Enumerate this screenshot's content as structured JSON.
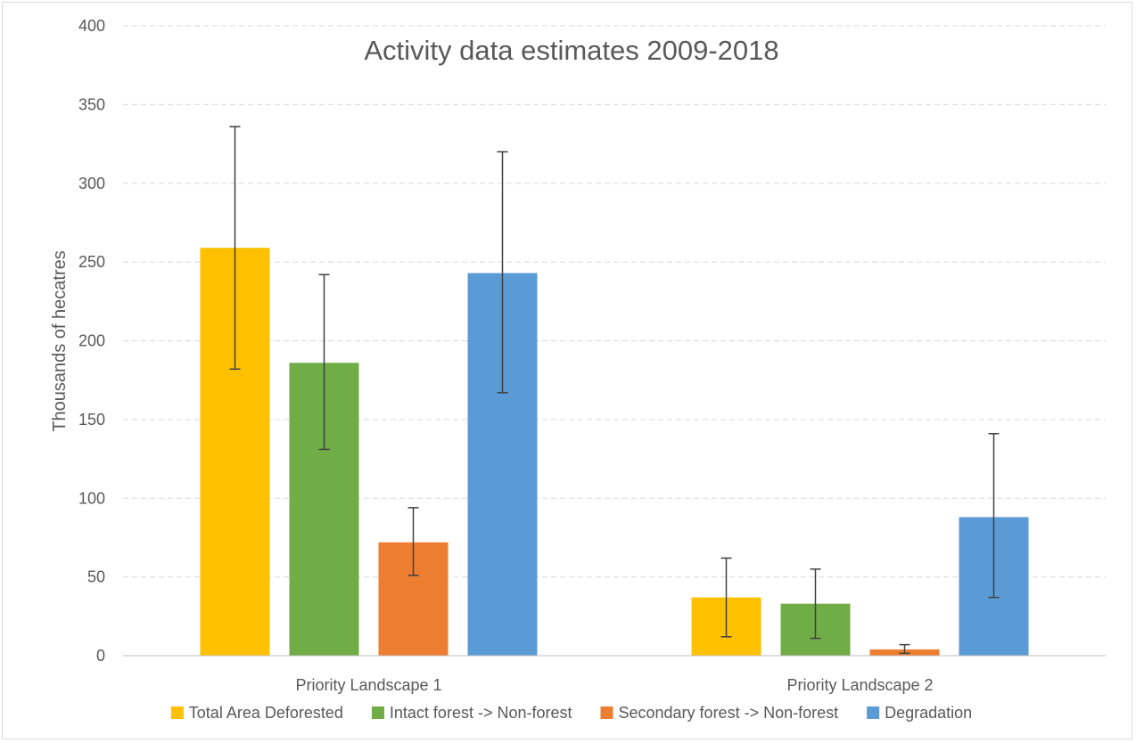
{
  "chart_data": {
    "type": "bar",
    "title": "Activity data estimates 2009-2018",
    "xlabel": "",
    "ylabel": "Thousands of hecatres",
    "ylim": [
      0,
      400
    ],
    "yticks": [
      0,
      50,
      100,
      150,
      200,
      250,
      300,
      350,
      400
    ],
    "grid": true,
    "legend_position": "bottom",
    "categories": [
      "Priority Landscape 1",
      "Priority Landscape 2"
    ],
    "series": [
      {
        "name": "Total Area Deforested",
        "color": "#FFC000",
        "values": [
          259,
          37
        ],
        "error_low": [
          182,
          12
        ],
        "error_high": [
          336,
          62
        ]
      },
      {
        "name": "Intact forest -> Non-forest",
        "color": "#70AD47",
        "values": [
          186,
          33
        ],
        "error_low": [
          131,
          11
        ],
        "error_high": [
          242,
          55
        ]
      },
      {
        "name": "Secondary forest -> Non-forest",
        "color": "#ED7D31",
        "values": [
          72,
          4
        ],
        "error_low": [
          51,
          1.5
        ],
        "error_high": [
          94,
          7
        ]
      },
      {
        "name": "Degradation",
        "color": "#5B9BD5",
        "values": [
          243,
          88
        ],
        "error_low": [
          167,
          37
        ],
        "error_high": [
          320,
          141
        ]
      }
    ]
  }
}
